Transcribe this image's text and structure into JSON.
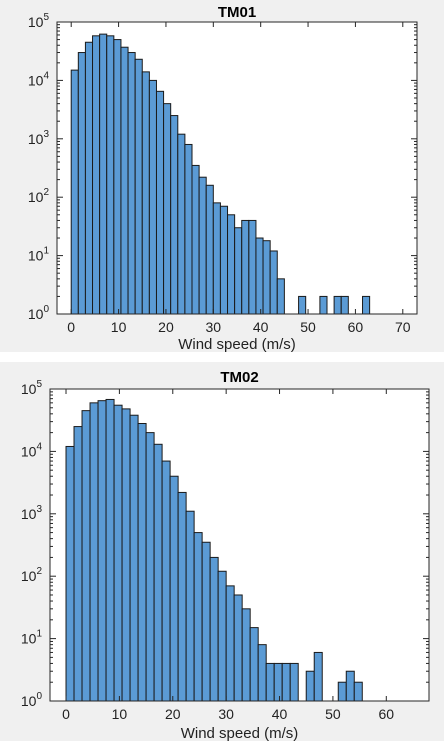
{
  "colors": {
    "bar_fill": "#5b9bd5",
    "panel_bg": "#f0f0f0",
    "axes_bg": "#ffffff"
  },
  "chart_data": [
    {
      "type": "bar",
      "title": "TM01",
      "xlabel": "Wind speed (m/s)",
      "ylabel": "",
      "yscale": "log",
      "xlim": [
        -3,
        73
      ],
      "ylim_exp": [
        0,
        5
      ],
      "xticks": [
        0,
        10,
        20,
        30,
        40,
        50,
        60,
        70
      ],
      "yticks_exp": [
        0,
        1,
        2,
        3,
        4,
        5
      ],
      "bin_width": 1.5,
      "bins_start": [
        0,
        1.5,
        3,
        4.5,
        6,
        7.5,
        9,
        10.5,
        12,
        13.5,
        15,
        16.5,
        18,
        19.5,
        21,
        22.5,
        24,
        25.5,
        27,
        28.5,
        30,
        31.5,
        33,
        34.5,
        36,
        37.5,
        39,
        40.5,
        42,
        43.5,
        48,
        52.5,
        55.5,
        57,
        61.5
      ],
      "counts": [
        15000,
        30000,
        45000,
        58000,
        62000,
        58000,
        50000,
        37000,
        30000,
        23000,
        14000,
        10000,
        6500,
        4000,
        2500,
        1200,
        800,
        350,
        220,
        160,
        80,
        70,
        50,
        30,
        40,
        40,
        20,
        18,
        12,
        4,
        2,
        2,
        2,
        2,
        2
      ],
      "grid": false
    },
    {
      "type": "bar",
      "title": "TM02",
      "xlabel": "Wind speed (m/s)",
      "ylabel": "",
      "yscale": "log",
      "xlim": [
        -3,
        68
      ],
      "ylim_exp": [
        0,
        5
      ],
      "xticks": [
        0,
        10,
        20,
        30,
        40,
        50,
        60
      ],
      "yticks_exp": [
        0,
        1,
        2,
        3,
        4,
        5
      ],
      "bin_width": 1.5,
      "bins_start": [
        0,
        1.5,
        3,
        4.5,
        6,
        7.5,
        9,
        10.5,
        12,
        13.5,
        15,
        16.5,
        18,
        19.5,
        21,
        22.5,
        24,
        25.5,
        27,
        28.5,
        30,
        31.5,
        33,
        34.5,
        36,
        37.5,
        39,
        40.5,
        42,
        45,
        46.5,
        51,
        52.5,
        54
      ],
      "counts": [
        12000,
        25000,
        45000,
        60000,
        65000,
        68000,
        55000,
        48000,
        38000,
        28000,
        20000,
        13000,
        7000,
        4000,
        2200,
        1100,
        500,
        350,
        200,
        120,
        70,
        50,
        30,
        15,
        8,
        4,
        4,
        4,
        4,
        3,
        6,
        2,
        3,
        2
      ],
      "grid": false
    }
  ]
}
